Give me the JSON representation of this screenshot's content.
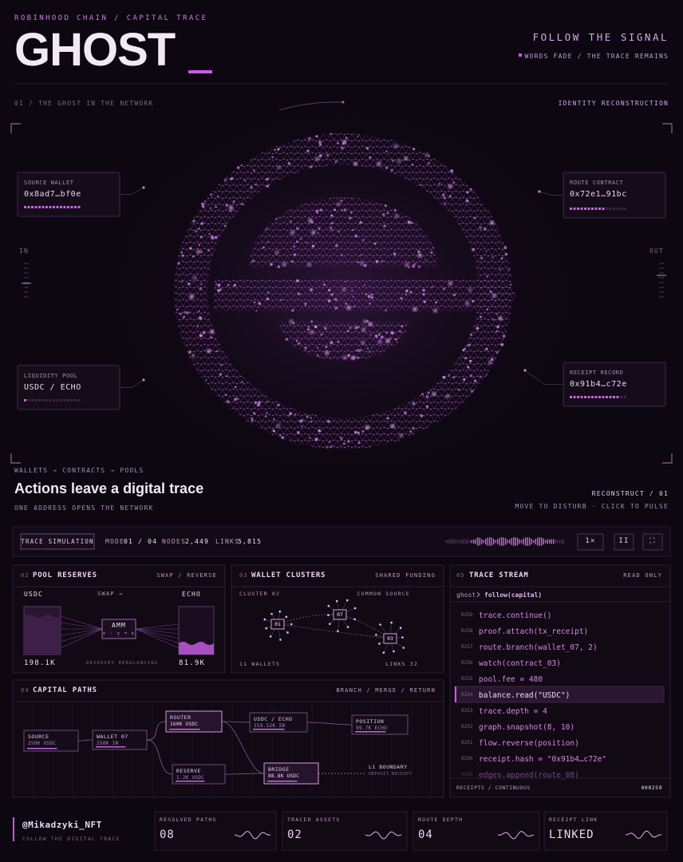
{
  "header": {
    "eyebrow": "ROBINHOOD CHAIN / CAPITAL TRACE",
    "title": "GHOST",
    "tagline": "FOLLOW THE SIGNAL",
    "motto": "WORDS FADE / THE TRACE REMAINS"
  },
  "hero": {
    "label": "01 / THE GHOST IN THE NETWORK",
    "right_label": "IDENTITY RECONSTRUCTION",
    "in_label": "IN",
    "out_label": "OUT",
    "cards": [
      {
        "label": "SOURCE WALLET",
        "value": "0x8ad7…bf0e"
      },
      {
        "label": "ROUTE CONTRACT",
        "value": "0x72e1…91bc"
      },
      {
        "label": "LIQUIDITY POOL",
        "value": "USDC / ECHO"
      },
      {
        "label": "RECEIPT RECORD",
        "value": "0x91b4…c72e"
      }
    ],
    "flow": "WALLETS → CONTRACTS → POOLS",
    "headline": "Actions leave a digital trace",
    "subline": "ONE ADDRESS OPENS THE NETWORK",
    "action": "RECONSTRUCT / 01",
    "hint": "MOVE TO DISTURB · CLICK TO PULSE"
  },
  "toolbar": {
    "badge": "TRACE SIMULATION",
    "mode_label": "MODE",
    "mode_value": "01 / 04",
    "nodes_label": "NODES",
    "nodes_value": "2,449",
    "links_label": "LINKS",
    "links_value": "5,815",
    "buttons": [
      "1×",
      "II",
      "⛶"
    ]
  },
  "pool": {
    "number": "02",
    "title": "POOL RESERVES",
    "action": "SWAP / REVERSE",
    "left_token": "USDC",
    "swap": "SWAP →",
    "right_token": "ECHO",
    "amm": "AMM",
    "formula": "x · y = k",
    "left_amount": "198.1K",
    "status": "RESERVES REBALANCING",
    "right_amount": "81.9K"
  },
  "clusters": {
    "number": "03",
    "title": "WALLET CLUSTERS",
    "tag": "SHARED FUNDING",
    "cluster": "CLUSTER 02",
    "source": "COMMON SOURCE",
    "nodes": [
      "01",
      "07",
      "03"
    ],
    "wallets": "11 WALLETS",
    "links": "LINKS 32"
  },
  "stream": {
    "number": "05",
    "title": "TRACE STREAM",
    "tag": "READ ONLY",
    "prompt": "ghost",
    "command": "follow(capital)",
    "lines": [
      {
        "n": "0259",
        "code": "trace.continue()"
      },
      {
        "n": "0258",
        "code": "proof.attach(tx_receipt)"
      },
      {
        "n": "0257",
        "code": "route.branch(wallet_07, 2)"
      },
      {
        "n": "0256",
        "code": "watch(contract_03)"
      },
      {
        "n": "0255",
        "code": "pool.fee = 480"
      },
      {
        "n": "0254",
        "code": "balance.read(\"USDC\")"
      },
      {
        "n": "0253",
        "code": "trace.depth = 4"
      },
      {
        "n": "0252",
        "code": "graph.snapshot(8, 10)"
      },
      {
        "n": "0251",
        "code": "flow.reverse(position)"
      },
      {
        "n": "0250",
        "code": "receipt.hash = \"0x91b4…c72e\""
      },
      {
        "n": "0249",
        "code": "edges.append(route_08)"
      }
    ],
    "footer": "RECEIPTS / CONTINUOUS",
    "counter": "000259"
  },
  "paths": {
    "number": "04",
    "title": "CAPITAL PATHS",
    "tag": "BRANCH / MERGE / RETURN",
    "nodes": [
      {
        "label": "SOURCE",
        "value": "250K USDC"
      },
      {
        "label": "WALLET 07",
        "value": "250K IN"
      },
      {
        "label": "ROUTER",
        "value": "160K USDC"
      },
      {
        "label": "USDC / ECHO",
        "value": "159.52K IN"
      },
      {
        "label": "POSITION",
        "value": "99.7K ECHO"
      },
      {
        "label": "RESERVE",
        "value": "1.2K USDC"
      },
      {
        "label": "BRIDGE",
        "value": "88.8K USDC"
      },
      {
        "label": "L1 BOUNDARY",
        "value": "DEPOSIT RECEIPT"
      }
    ]
  },
  "footer": {
    "handle": "@Mikadzyki_NFT",
    "tagline": "FOLLOW THE DIGITAL TRACE",
    "stats": [
      {
        "label": "RESOLVED PATHS",
        "value": "08"
      },
      {
        "label": "TRACED ASSETS",
        "value": "02"
      },
      {
        "label": "ROUTE DEPTH",
        "value": "04"
      },
      {
        "label": "RECEIPT LINK",
        "value": "LINKED"
      }
    ]
  }
}
